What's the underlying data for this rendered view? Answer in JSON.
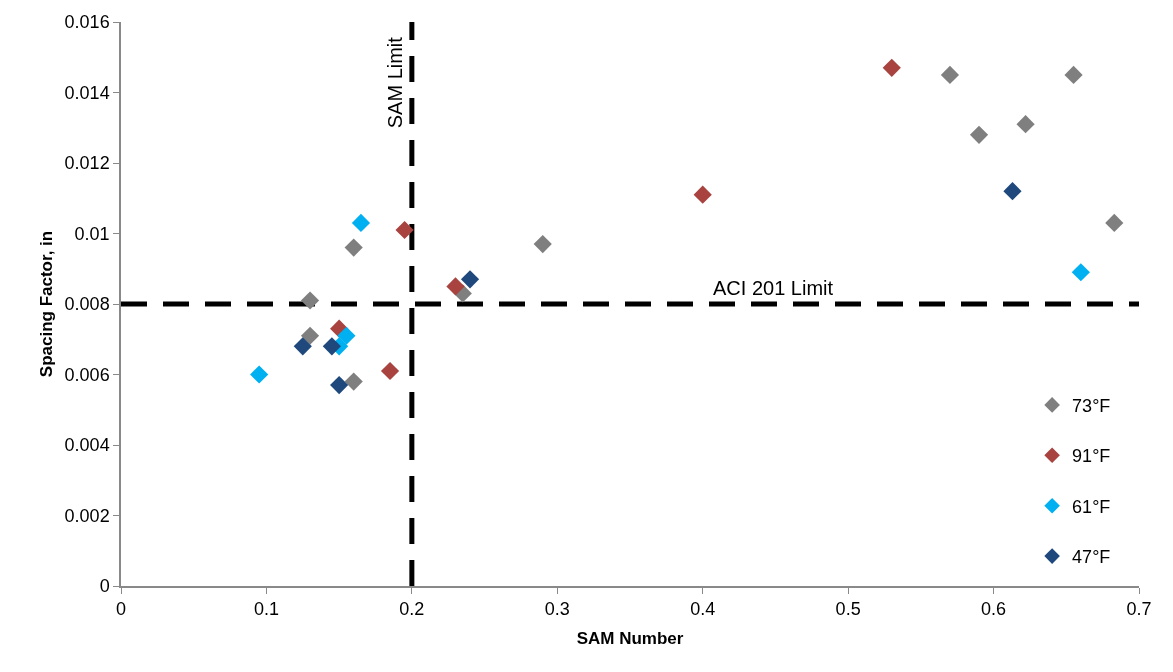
{
  "chart_data": {
    "type": "scatter",
    "xlabel": "SAM Number",
    "ylabel": "Spacing Factor, in",
    "xlim": [
      0,
      0.7
    ],
    "xticks": [
      0,
      0.1,
      0.2,
      0.3,
      0.4,
      0.5,
      0.6,
      0.7
    ],
    "ylim": [
      0,
      0.016
    ],
    "yticks": [
      0,
      0.002,
      0.004,
      0.006,
      0.008,
      0.01,
      0.012,
      0.014,
      0.016
    ],
    "grid": false,
    "legend": "bottom right",
    "marker": "diamond",
    "series": [
      {
        "name": "73°F",
        "color": "#7f7f7f",
        "x": [
          0.13,
          0.13,
          0.16,
          0.16,
          0.235,
          0.29,
          0.57,
          0.59,
          0.622,
          0.655,
          0.683
        ],
        "values": [
          0.0081,
          0.0071,
          0.0096,
          0.0058,
          0.0083,
          0.0097,
          0.0145,
          0.0128,
          0.0131,
          0.0145,
          0.0103
        ]
      },
      {
        "name": "91°F",
        "color": "#a8433f",
        "x": [
          0.15,
          0.185,
          0.195,
          0.23,
          0.4,
          0.53
        ],
        "values": [
          0.0073,
          0.0061,
          0.0101,
          0.0085,
          0.0111,
          0.0147
        ]
      },
      {
        "name": "61°F",
        "color": "#00b0f0",
        "x": [
          0.095,
          0.15,
          0.155,
          0.165,
          0.66
        ],
        "values": [
          0.006,
          0.0068,
          0.0071,
          0.0103,
          0.0089
        ]
      },
      {
        "name": "47°F",
        "color": "#1f497d",
        "x": [
          0.125,
          0.145,
          0.15,
          0.24,
          0.613
        ],
        "values": [
          0.0068,
          0.0068,
          0.0057,
          0.0087,
          0.0112
        ]
      }
    ],
    "ref_lines": [
      {
        "axis": "x",
        "value": 0.2,
        "label": "SAM Limit",
        "color": "#000000",
        "line_style": "dashed"
      },
      {
        "axis": "y",
        "value": 0.008,
        "label": "ACI 201 Limit",
        "color": "#000000",
        "line_style": "dashed"
      }
    ]
  }
}
